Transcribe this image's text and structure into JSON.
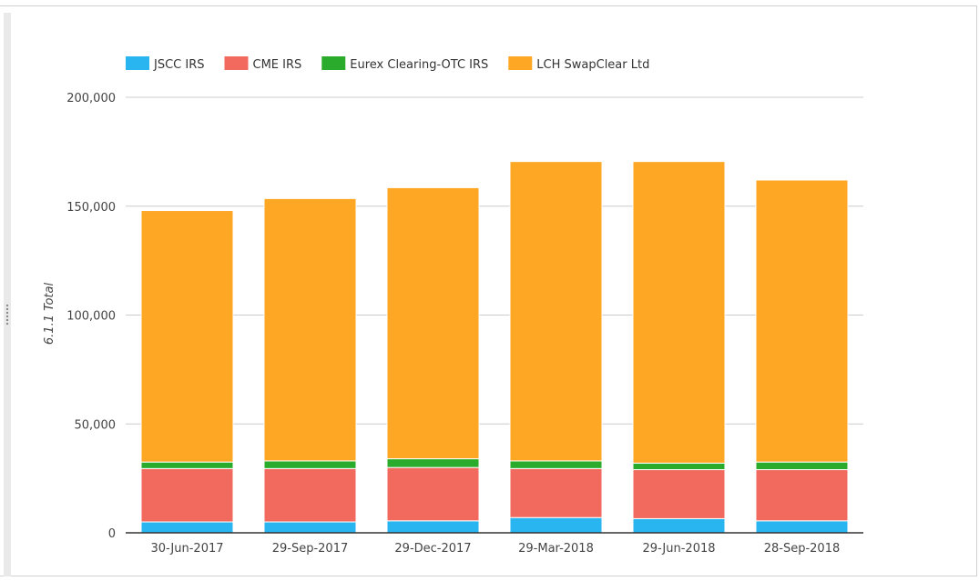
{
  "chart_data": {
    "type": "bar",
    "stacked": true,
    "categories": [
      "30-Jun-2017",
      "29-Sep-2017",
      "29-Dec-2017",
      "29-Mar-2018",
      "29-Jun-2018",
      "28-Sep-2018"
    ],
    "series": [
      {
        "name": "JSCC IRS",
        "color": "#29b5f0",
        "values": [
          5000,
          5000,
          5500,
          7000,
          6500,
          5500
        ]
      },
      {
        "name": "CME IRS",
        "color": "#f26a5e",
        "values": [
          24500,
          24500,
          24500,
          22500,
          22500,
          23500
        ]
      },
      {
        "name": "Eurex Clearing-OTC IRS",
        "color": "#2bab2b",
        "values": [
          3000,
          3500,
          4000,
          3500,
          3000,
          3500
        ]
      },
      {
        "name": "LCH SwapClear Ltd",
        "color": "#fda725",
        "values": [
          115500,
          120500,
          124500,
          137500,
          138500,
          129500
        ]
      }
    ],
    "ylabel": "6.1.1 Total",
    "xlabel": "",
    "ylim": [
      0,
      200000
    ],
    "yticks": [
      "0",
      "50,000",
      "100,000",
      "150,000",
      "200,000"
    ],
    "ytick_values": [
      0,
      50000,
      100000,
      150000,
      200000
    ],
    "grid": true,
    "legend_position": "top-left"
  }
}
